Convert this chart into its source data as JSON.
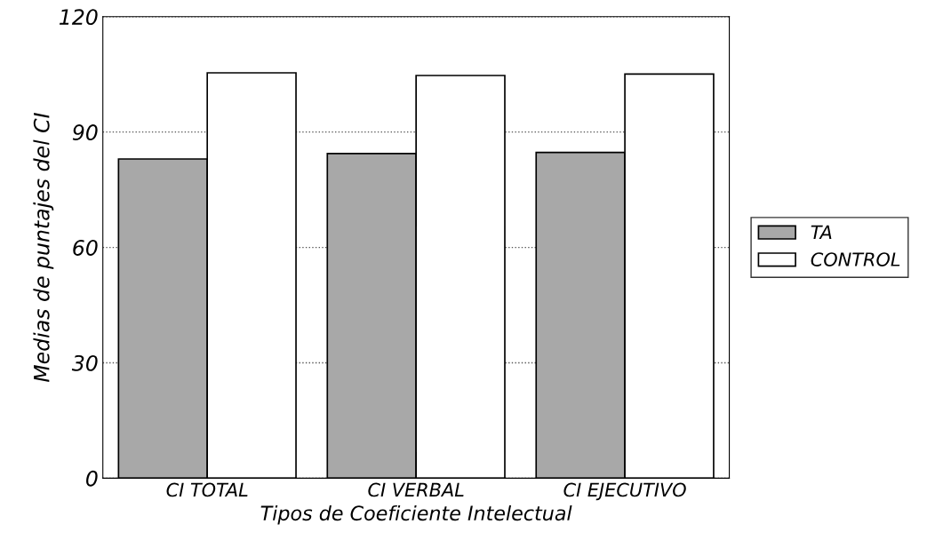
{
  "chart_data": {
    "type": "bar",
    "xlabel": "Tipos de Coeficiente Intelectual",
    "ylabel": "Medias de puntajes del CI",
    "categories": [
      "CI TOTAL",
      "CI VERBAL",
      "CI EJECUTIVO"
    ],
    "series": [
      {
        "name": "TA",
        "color": "#a8a8a8",
        "values": [
          83.0,
          84.4,
          84.7
        ]
      },
      {
        "name": "CONTROL",
        "color": "#ffffff",
        "values": [
          105.4,
          104.7,
          105.1
        ]
      }
    ],
    "ylim": [
      0,
      120
    ],
    "yticks": [
      0,
      30,
      60,
      90,
      120
    ],
    "grid": "y",
    "legend": "right"
  }
}
